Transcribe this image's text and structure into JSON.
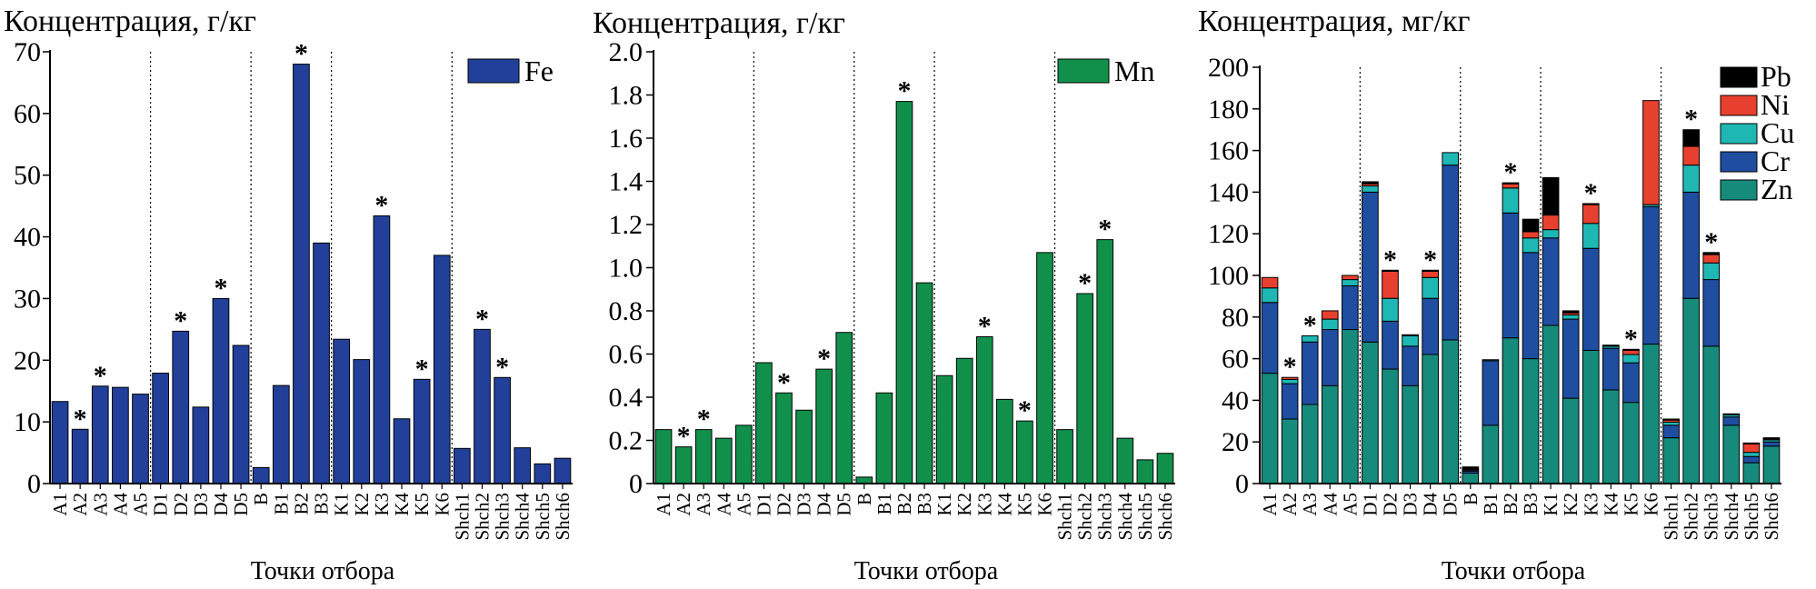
{
  "xlabel": "Точки отбора",
  "groups": [
    5,
    5,
    4,
    6,
    6
  ],
  "chart_data": [
    {
      "type": "bar",
      "ylabel": "Концентрация, г/кг",
      "ylim": [
        0,
        70
      ],
      "yticks": [
        "0",
        "10",
        "20",
        "30",
        "40",
        "50",
        "60",
        "70"
      ],
      "categories": [
        "A1",
        "A2",
        "A3",
        "A4",
        "A5",
        "D1",
        "D2",
        "D3",
        "D4",
        "D5",
        "B",
        "B1",
        "B2",
        "B3",
        "K1",
        "K2",
        "K3",
        "K4",
        "K5",
        "K6",
        "Shch1",
        "Shch2",
        "Shch3",
        "Shch4",
        "Shch5",
        "Shch6"
      ],
      "series": [
        {
          "name": "Fe",
          "color": "#22409a",
          "values": [
            13.3,
            8.8,
            15.8,
            15.6,
            14.5,
            17.9,
            24.7,
            12.4,
            30.0,
            22.4,
            2.6,
            15.9,
            68.0,
            39.0,
            23.4,
            20.1,
            43.4,
            10.5,
            16.9,
            37.0,
            5.7,
            25.0,
            17.2,
            5.8,
            3.2,
            4.1
          ]
        }
      ],
      "stars": [
        1,
        2,
        6,
        8,
        12,
        16,
        18,
        21,
        22
      ],
      "legend_position": "top-right"
    },
    {
      "type": "bar",
      "ylabel": "Концентрация, г/кг",
      "ylim": [
        0,
        2.0
      ],
      "yticks": [
        "0",
        "0.2",
        "0.4",
        "0.6",
        "0.8",
        "1.0",
        "1.2",
        "1.4",
        "1.6",
        "1.8",
        "2.0"
      ],
      "categories": [
        "A1",
        "A2",
        "A3",
        "A4",
        "A5",
        "D1",
        "D2",
        "D3",
        "D4",
        "D5",
        "B",
        "B1",
        "B2",
        "B3",
        "K1",
        "K2",
        "K3",
        "K4",
        "K5",
        "K6",
        "Shch1",
        "Shch2",
        "Shch3",
        "Shch4",
        "Shch5",
        "Shch6"
      ],
      "series": [
        {
          "name": "Mn",
          "color": "#11904b",
          "values": [
            0.25,
            0.17,
            0.25,
            0.21,
            0.27,
            0.56,
            0.42,
            0.34,
            0.53,
            0.7,
            0.03,
            0.42,
            1.77,
            0.93,
            0.5,
            0.58,
            0.68,
            0.39,
            0.29,
            1.07,
            0.25,
            0.88,
            1.13,
            0.21,
            0.11,
            0.14
          ]
        }
      ],
      "stars": [
        1,
        2,
        6,
        8,
        12,
        16,
        18,
        21,
        22
      ],
      "legend_position": "top-right"
    },
    {
      "type": "bar",
      "stacked": true,
      "ylabel": "Концентрация, мг/кг",
      "ylim": [
        0,
        200
      ],
      "yticks": [
        "0",
        "20",
        "40",
        "60",
        "80",
        "100",
        "120",
        "140",
        "160",
        "180",
        "200"
      ],
      "categories": [
        "A1",
        "A2",
        "A3",
        "A4",
        "A5",
        "D1",
        "D2",
        "D3",
        "D4",
        "D5",
        "B",
        "B1",
        "B2",
        "B3",
        "K1",
        "K2",
        "K3",
        "K4",
        "K5",
        "K6",
        "Shch1",
        "Shch2",
        "Shch3",
        "Shch4",
        "Shch5",
        "Shch6"
      ],
      "series": [
        {
          "name": "Zn",
          "color": "#168b7c",
          "values": [
            53,
            31,
            38,
            47,
            74,
            68,
            55,
            47,
            62,
            69,
            5,
            28,
            70,
            60,
            76,
            41,
            64,
            45,
            39,
            67,
            22,
            89,
            66,
            28,
            10,
            18
          ]
        },
        {
          "name": "Cr",
          "color": "#1f4da0",
          "values": [
            34,
            17,
            30,
            27,
            21,
            72,
            23,
            19,
            27,
            84,
            1,
            31,
            60,
            51,
            42,
            38,
            49,
            20,
            19,
            66,
            6,
            51,
            32,
            4,
            3,
            2
          ]
        },
        {
          "name": "Cu",
          "color": "#1fb7b3",
          "values": [
            7,
            2,
            3,
            5,
            3,
            3,
            11,
            5,
            10,
            6,
            0.5,
            0.5,
            12,
            7,
            4,
            2,
            12,
            1,
            4,
            1,
            1.5,
            13,
            8,
            1,
            2,
            1
          ]
        },
        {
          "name": "Ni",
          "color": "#e8402e",
          "values": [
            5,
            1,
            0,
            4,
            2,
            1,
            13,
            0.5,
            3,
            0,
            0.5,
            0,
            2,
            3,
            7,
            1,
            9,
            0,
            2,
            50,
            1,
            9,
            4,
            0,
            4,
            0.5
          ]
        },
        {
          "name": "Pb",
          "color": "#000000",
          "values": [
            0,
            0,
            0,
            0,
            0,
            1,
            0.5,
            0,
            0.5,
            0,
            1,
            0,
            0.5,
            6,
            18,
            1,
            0.5,
            0.5,
            0.5,
            0,
            0.5,
            8,
            1,
            0.5,
            0.5,
            0.5
          ]
        }
      ],
      "stars": [
        1,
        2,
        6,
        8,
        12,
        16,
        18,
        21,
        22
      ],
      "legend_position": "top-right"
    }
  ]
}
